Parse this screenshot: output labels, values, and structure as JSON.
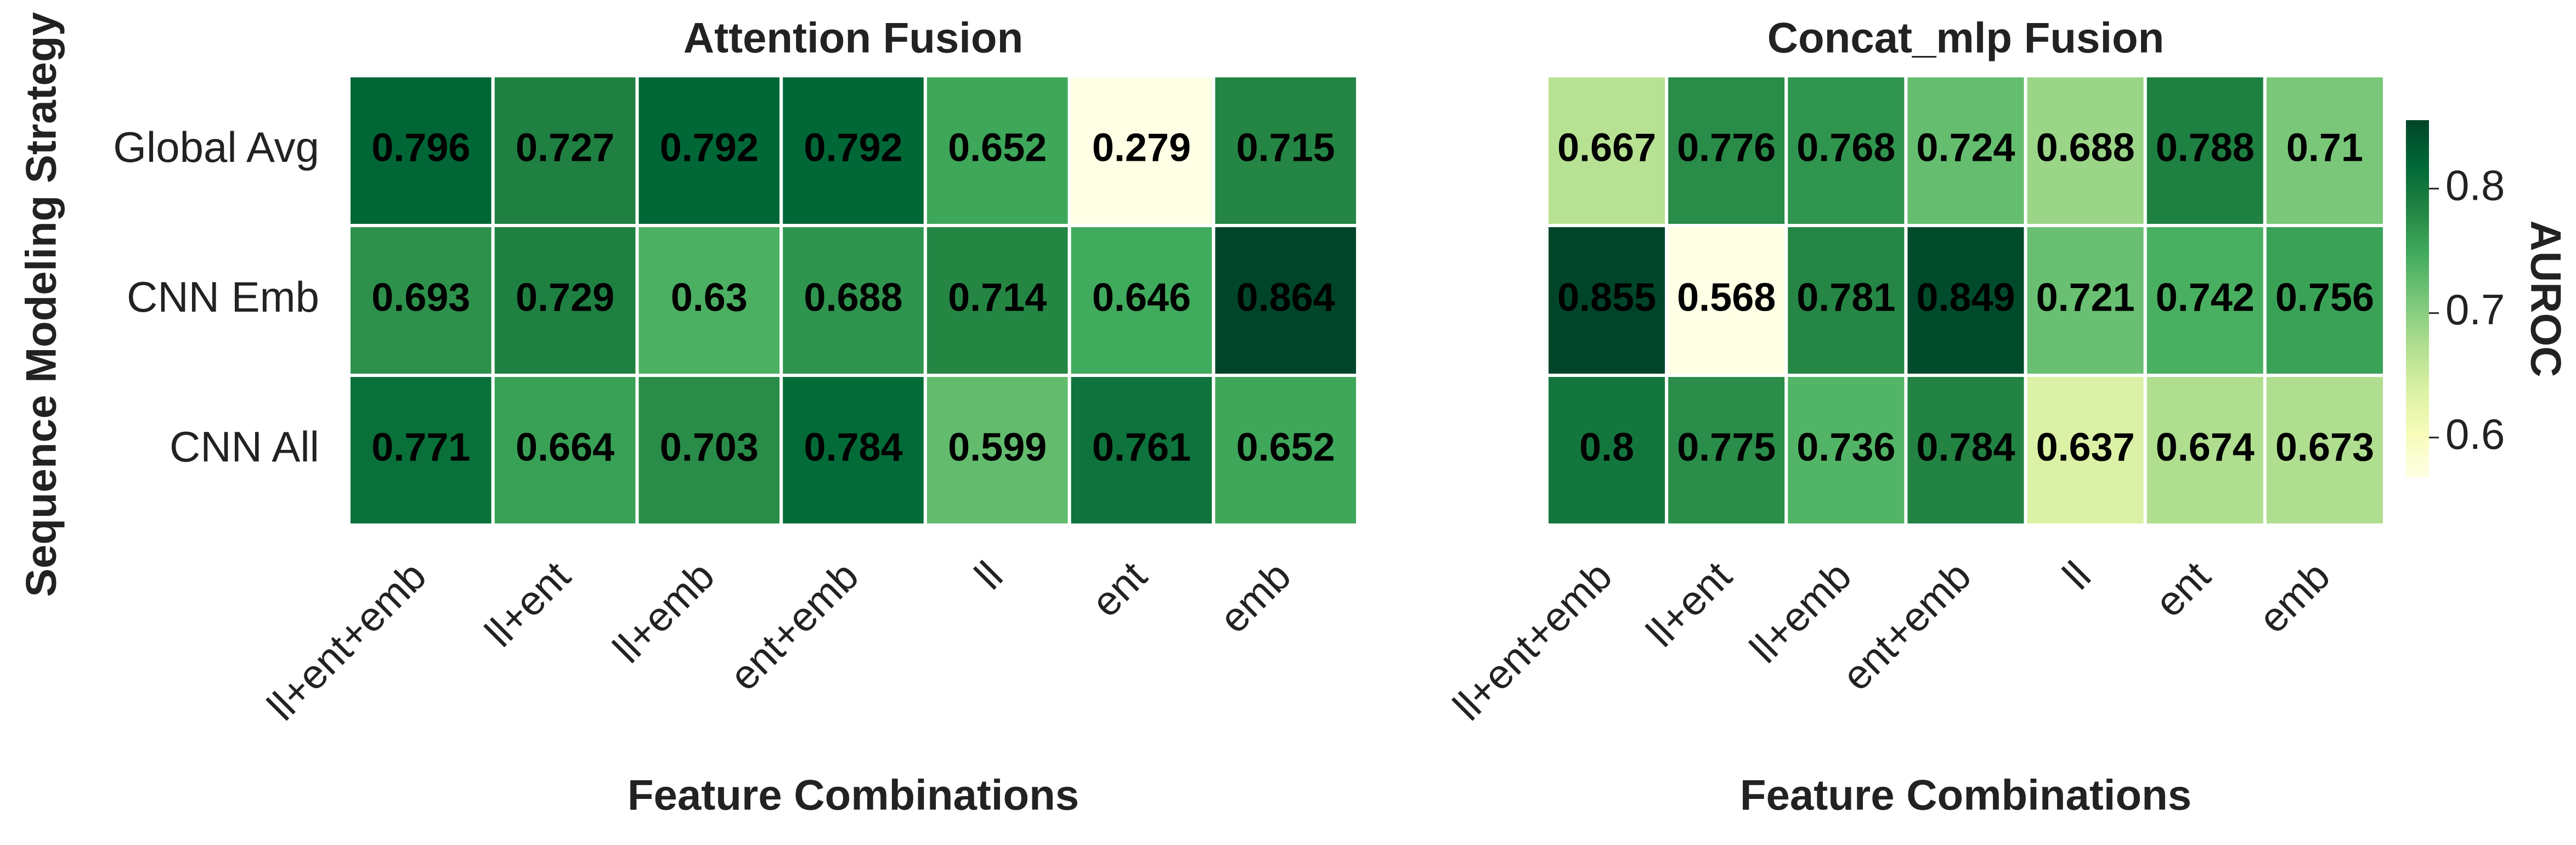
{
  "chart_data": [
    {
      "type": "heatmap",
      "title": "Attention Fusion",
      "xlabel": "Feature Combinations",
      "ylabel": "Sequence Modeling Strategy",
      "colormap": "YlGn",
      "categories": [
        "ll+ent+emb",
        "ll+ent",
        "ll+emb",
        "ent+emb",
        "ll",
        "ent",
        "emb"
      ],
      "rows": [
        "Global Avg",
        "CNN Emb",
        "CNN All"
      ],
      "z": [
        [
          0.796,
          0.727,
          0.792,
          0.792,
          0.652,
          0.279,
          0.715
        ],
        [
          0.693,
          0.729,
          0.63,
          0.688,
          0.714,
          0.646,
          0.864
        ],
        [
          0.771,
          0.664,
          0.703,
          0.784,
          0.599,
          0.761,
          0.652
        ]
      ],
      "zlim": [
        0.279,
        0.864
      ]
    },
    {
      "type": "heatmap",
      "title": "Concat_mlp Fusion",
      "xlabel": "Feature Combinations",
      "colormap": "YlGn",
      "categories": [
        "ll+ent+emb",
        "ll+ent",
        "ll+emb",
        "ent+emb",
        "ll",
        "ent",
        "emb"
      ],
      "z": [
        [
          0.667,
          0.776,
          0.768,
          0.724,
          0.688,
          0.788,
          0.71
        ],
        [
          0.855,
          0.568,
          0.781,
          0.849,
          0.721,
          0.742,
          0.756
        ],
        [
          0.8,
          0.775,
          0.736,
          0.784,
          0.637,
          0.674,
          0.673
        ]
      ],
      "zlim": [
        0.568,
        0.855
      ],
      "zticks": [
        0.6,
        0.7,
        0.8
      ],
      "zlabel": "AUROC"
    }
  ]
}
